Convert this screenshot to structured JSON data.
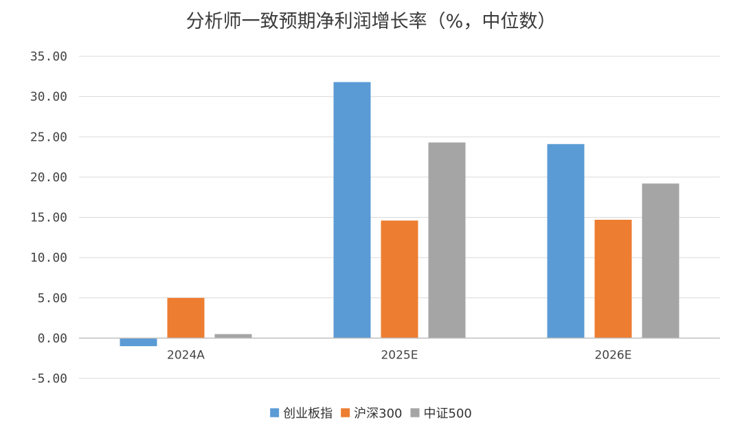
{
  "chart_data": {
    "type": "bar",
    "title": "分析师一致预期净利润增长率（%，中位数）",
    "categories": [
      "2024A",
      "2025E",
      "2026E"
    ],
    "series": [
      {
        "name": "创业板指",
        "color": "#5B9BD5",
        "values": [
          -1.0,
          31.8,
          24.1
        ]
      },
      {
        "name": "沪深300",
        "color": "#ED7D31",
        "values": [
          5.0,
          14.6,
          14.7
        ]
      },
      {
        "name": "中证500",
        "color": "#A5A5A5",
        "values": [
          0.5,
          24.3,
          19.2
        ]
      }
    ],
    "ylim": [
      -5,
      35
    ],
    "yticks": [
      "-5.00",
      "0.00",
      "5.00",
      "10.00",
      "15.00",
      "20.00",
      "25.00",
      "30.00",
      "35.00"
    ],
    "ytick_values": [
      -5,
      0,
      5,
      10,
      15,
      20,
      25,
      30,
      35
    ],
    "xlabel": "",
    "ylabel": "",
    "grid": true,
    "legend_position": "bottom"
  }
}
